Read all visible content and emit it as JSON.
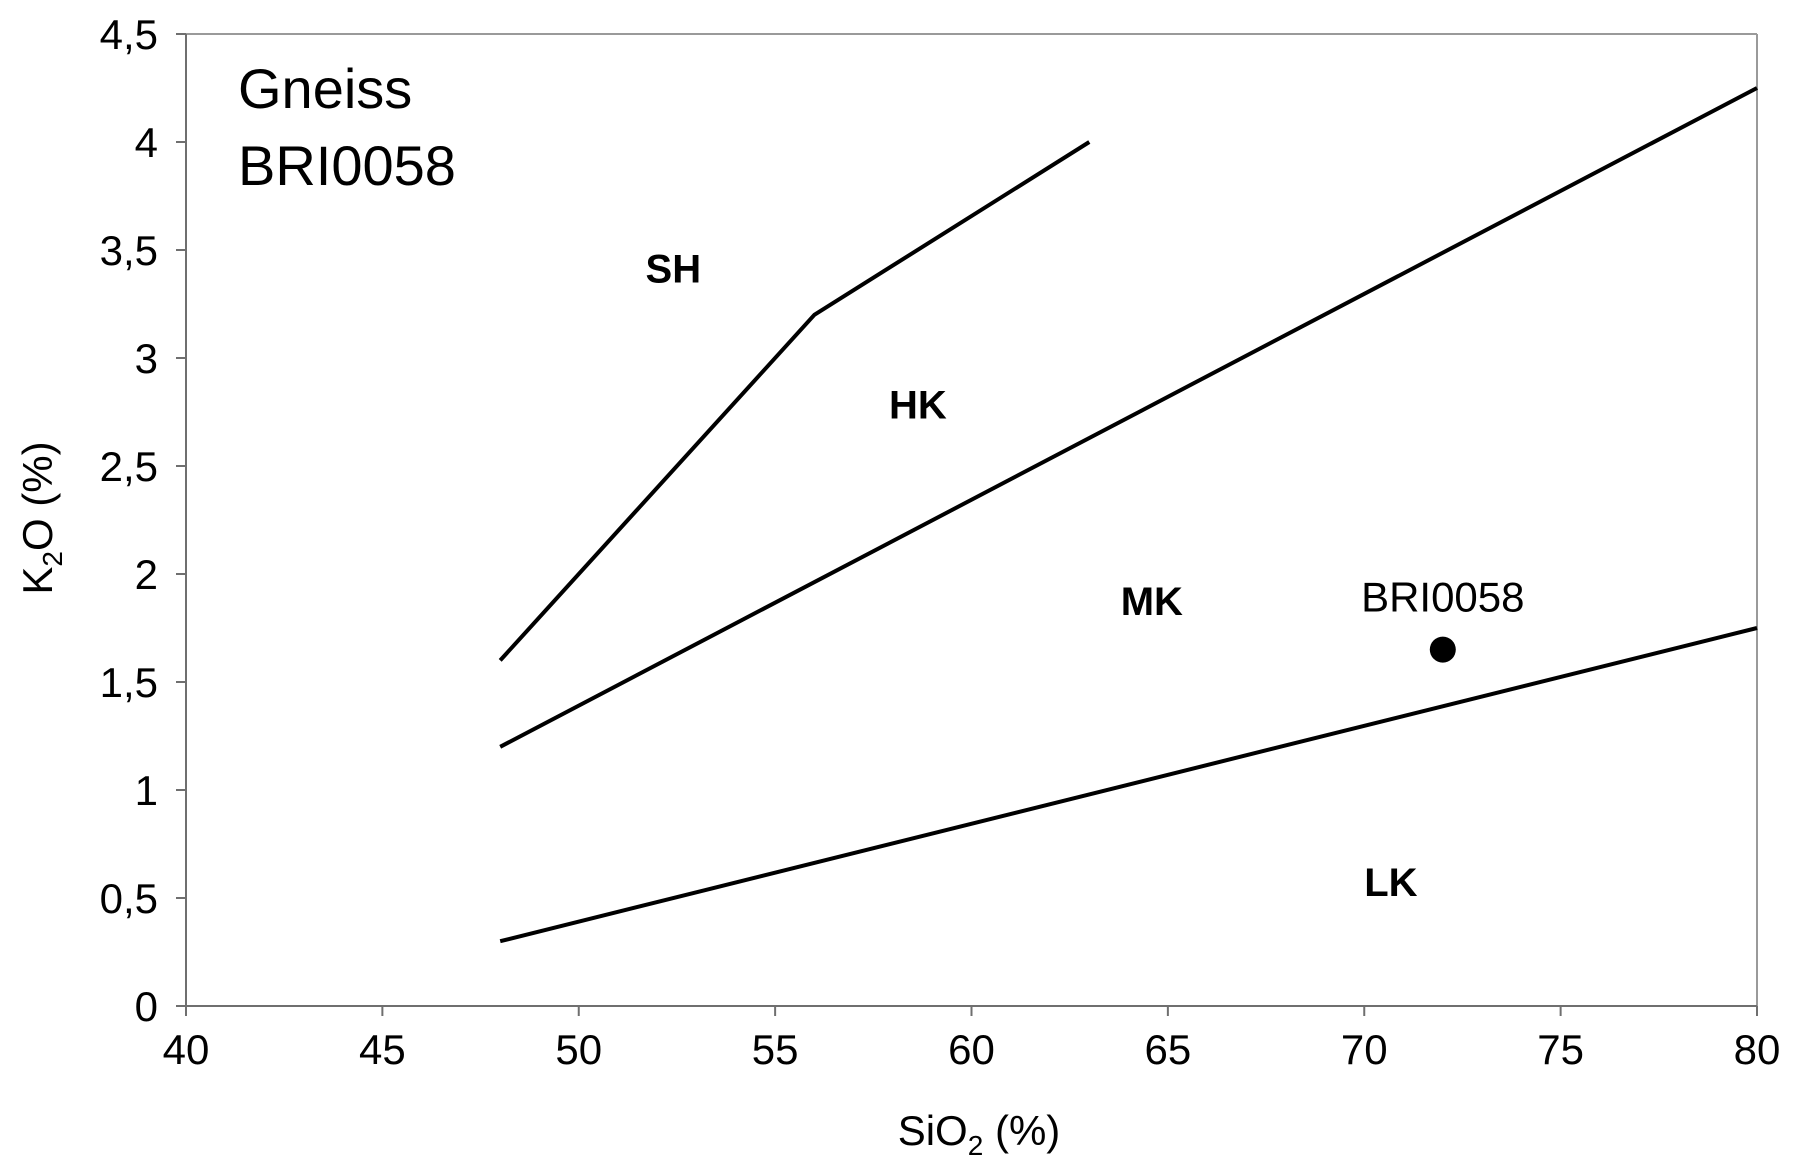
{
  "chart_data": {
    "type": "scatter",
    "title_lines": [
      "Gneiss",
      "BRI0058"
    ],
    "xlabel": {
      "main": "SiO",
      "sub": "2",
      "suffix": " (%)"
    },
    "ylabel": {
      "main": "K",
      "sub": "2",
      "suffix": "O (%)"
    },
    "xlim": [
      40,
      80
    ],
    "ylim": [
      0,
      4.5
    ],
    "x_ticks": [
      40,
      45,
      50,
      55,
      60,
      65,
      70,
      75,
      80
    ],
    "x_tick_labels": [
      "40",
      "45",
      "50",
      "55",
      "60",
      "65",
      "70",
      "75",
      "80"
    ],
    "y_ticks": [
      0,
      0.5,
      1,
      1.5,
      2,
      2.5,
      3,
      3.5,
      4,
      4.5
    ],
    "y_tick_labels": [
      "0",
      "0,5",
      "1",
      "1,5",
      "2",
      "2,5",
      "3",
      "3,5",
      "4",
      "4,5"
    ],
    "grid": false,
    "boundaries": [
      {
        "points": [
          [
            48,
            1.6
          ],
          [
            56,
            3.2
          ],
          [
            63,
            4.0
          ]
        ]
      },
      {
        "points": [
          [
            48,
            1.2
          ],
          [
            80,
            4.25
          ]
        ]
      },
      {
        "points": [
          [
            48,
            0.3
          ],
          [
            80,
            1.75
          ]
        ]
      }
    ],
    "fields": [
      {
        "label": "SH",
        "x": 51.7,
        "y": 3.35
      },
      {
        "label": "HK",
        "x": 57.9,
        "y": 2.72
      },
      {
        "label": "MK",
        "x": 63.8,
        "y": 1.81
      },
      {
        "label": "LK",
        "x": 70.0,
        "y": 0.51
      }
    ],
    "series": [
      {
        "points": [
          {
            "x": 72,
            "y": 1.65,
            "label": "BRI0058"
          }
        ]
      }
    ],
    "colors": {
      "line": "#000000",
      "point": "#000000",
      "background": "#ffffff"
    }
  }
}
